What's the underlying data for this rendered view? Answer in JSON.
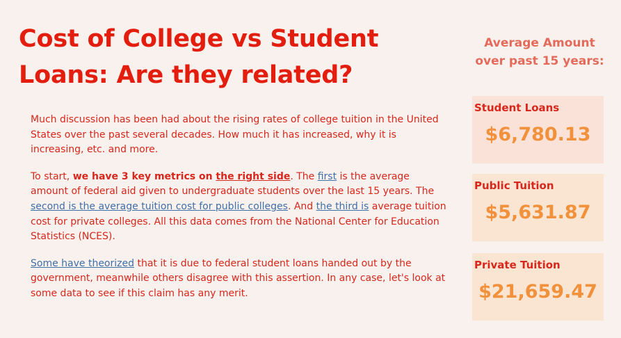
{
  "title": {
    "line1": "Cost of College vs Student",
    "line2": "Loans: Are they related?"
  },
  "paragraphs": {
    "p1": "Much discussion has been had about the rising rates of college tuition in the United States over the past several decades. How much it has increased, why it is increasing, etc. and more.",
    "p2": {
      "t1": "To start, ",
      "bold1": "we have 3 key metrics on ",
      "bold_link": "the right side",
      "t2": ". The ",
      "link_first": "first",
      "t3": " is the average amount of federal aid given to undergraduate students over the last 15 years. The ",
      "link_second": "second is the average tuition cost for public colleges",
      "t4": ". And ",
      "link_third": "the third is",
      "t5": " average tuition cost for private colleges. All this data comes from the National Center for Education Statistics (NCES)."
    },
    "p3": {
      "link": "Some have theorized",
      "text": " that it is due to federal student loans handed out by the government, meanwhile others disagree with this assertion. In any case, let's look at some data to see if this claim has any merit."
    }
  },
  "sidebar": {
    "heading_line1": "Average Amount",
    "heading_line2": "over past 15 years:",
    "cards": [
      {
        "label": "Student Loans",
        "value": "$6,780.13",
        "bg": "#fbe2d8"
      },
      {
        "label": "Public Tuition",
        "value": "$5,631.87",
        "bg": "#f9e5d2"
      },
      {
        "label": "Private Tuition",
        "value": "$21,659.47",
        "bg": "#f9e5d2"
      }
    ]
  },
  "colors": {
    "background": "#f8f1ed",
    "title": "#e41e0f",
    "body": "#d8271c",
    "link": "#3f6fa8",
    "side_heading": "#e46b5b",
    "card_value": "#f2913c"
  }
}
